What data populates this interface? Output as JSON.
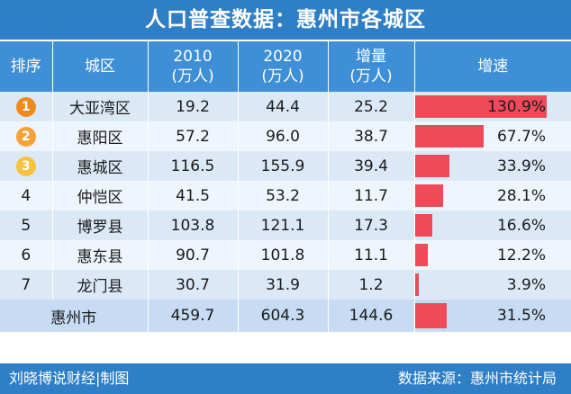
{
  "title": "人口普查数据：惠州市各城区",
  "headers": {
    "rank": "排序",
    "district": "城区",
    "y2010": [
      "2010",
      "(万人)"
    ],
    "y2020": [
      "2020",
      "(万人)"
    ],
    "increase": [
      "增量",
      "(万人)"
    ],
    "growth": "增速"
  },
  "chart_data": {
    "type": "table",
    "title": "人口普查数据：惠州市各城区",
    "columns": [
      "排序",
      "城区",
      "2010 (万人)",
      "2020 (万人)",
      "增量 (万人)",
      "增速"
    ],
    "rows": [
      {
        "rank": "1",
        "district": "大亚湾区",
        "y2010": "19.2",
        "y2020": "44.4",
        "increase": "25.2",
        "growth": "130.9%",
        "growth_value": 130.9
      },
      {
        "rank": "2",
        "district": "惠阳区",
        "y2010": "57.2",
        "y2020": "96.0",
        "increase": "38.7",
        "growth": "67.7%",
        "growth_value": 67.7
      },
      {
        "rank": "3",
        "district": "惠城区",
        "y2010": "116.5",
        "y2020": "155.9",
        "increase": "39.4",
        "growth": "33.9%",
        "growth_value": 33.9
      },
      {
        "rank": "4",
        "district": "仲恺区",
        "y2010": "41.5",
        "y2020": "53.2",
        "increase": "11.7",
        "growth": "28.1%",
        "growth_value": 28.1
      },
      {
        "rank": "5",
        "district": "博罗县",
        "y2010": "103.8",
        "y2020": "121.1",
        "increase": "17.3",
        "growth": "16.6%",
        "growth_value": 16.6
      },
      {
        "rank": "6",
        "district": "惠东县",
        "y2010": "90.7",
        "y2020": "101.8",
        "increase": "11.1",
        "growth": "12.2%",
        "growth_value": 12.2
      },
      {
        "rank": "7",
        "district": "龙门县",
        "y2010": "30.7",
        "y2020": "31.9",
        "increase": "1.2",
        "growth": "3.9%",
        "growth_value": 3.9
      }
    ],
    "total": {
      "district": "惠州市",
      "y2010": "459.7",
      "y2020": "604.3",
      "increase": "144.6",
      "growth": "31.5%",
      "growth_value": 31.5
    },
    "bar_color": "#ee4a5a"
  },
  "medal_colors": [
    "#f08a1c",
    "#f5a23a",
    "#f7c23e"
  ],
  "footer": {
    "credit": "刘晓博说财经|制图",
    "source": "数据来源：惠州市统计局"
  }
}
